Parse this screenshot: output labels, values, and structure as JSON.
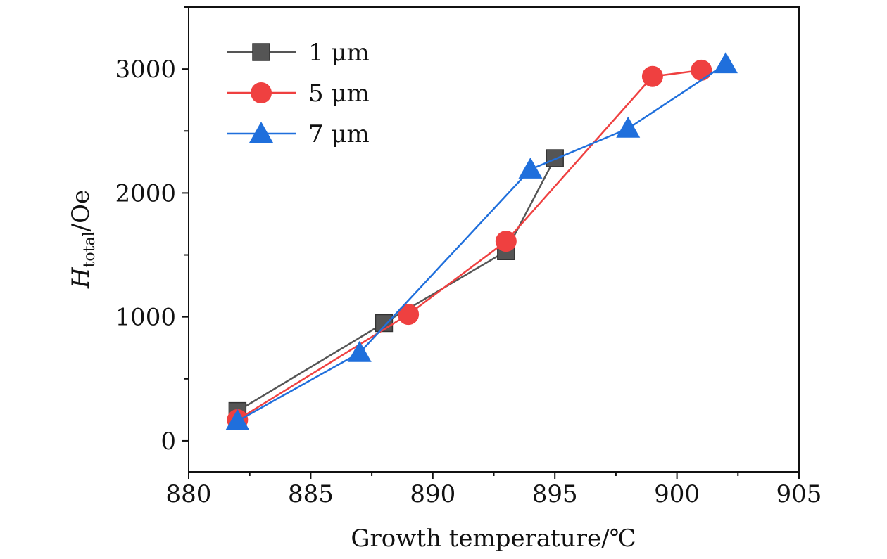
{
  "chart_data": {
    "type": "line",
    "xlabel": "Growth temperature/℃",
    "ylabel_main": "H",
    "ylabel_sub": "total",
    "ylabel_unit": "/Oe",
    "xlim": [
      880,
      905
    ],
    "ylim": [
      -250,
      3500
    ],
    "xticks": [
      880,
      885,
      890,
      895,
      900,
      905
    ],
    "yticks": [
      0,
      1000,
      2000,
      3000
    ],
    "xtick_labels": [
      "880",
      "885",
      "890",
      "895",
      "900",
      "905"
    ],
    "ytick_labels": [
      "0",
      "1000",
      "2000",
      "3000"
    ],
    "legend_position": "top-left",
    "series": [
      {
        "name": "1 μm",
        "marker": "square",
        "color": "#555555",
        "x": [
          882,
          888,
          893,
          895
        ],
        "y": [
          240,
          950,
          1530,
          2280
        ]
      },
      {
        "name": "5 μm",
        "marker": "circle",
        "color": "#ef4040",
        "x": [
          882,
          889,
          893,
          899,
          901
        ],
        "y": [
          170,
          1020,
          1610,
          2940,
          2990
        ]
      },
      {
        "name": "7 μm",
        "marker": "triangle",
        "color": "#1f6fdc",
        "x": [
          882,
          887,
          894,
          898,
          902
        ],
        "y": [
          160,
          710,
          2190,
          2520,
          3040
        ]
      }
    ]
  }
}
